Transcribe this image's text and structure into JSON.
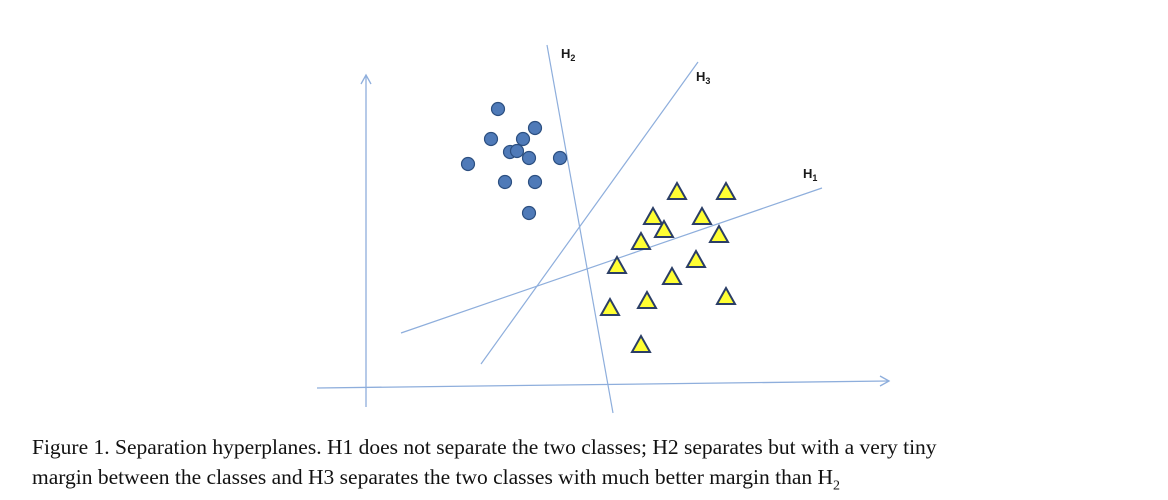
{
  "figure": {
    "hyperplanes": [
      {
        "id": "H1",
        "base": "H",
        "sub": "1"
      },
      {
        "id": "H2",
        "base": "H",
        "sub": "2"
      },
      {
        "id": "H3",
        "base": "H",
        "sub": "3"
      }
    ],
    "classes": {
      "circles": {
        "shape": "circle",
        "fill": "#4f7ab8",
        "stroke": "#2c4f80",
        "count": 12
      },
      "triangles": {
        "shape": "triangle",
        "fill": "#ffff33",
        "stroke": "#2b3e66",
        "count": 14
      }
    },
    "line_color": "#8eaedc"
  },
  "caption": {
    "line1": "Figure 1. Separation hyperplanes. H1 does not separate the two classes; H2 separates but with a very tiny",
    "line2_main": "margin between the classes and H3 separates the two classes with much better margin than H",
    "line2_sub": "2"
  }
}
